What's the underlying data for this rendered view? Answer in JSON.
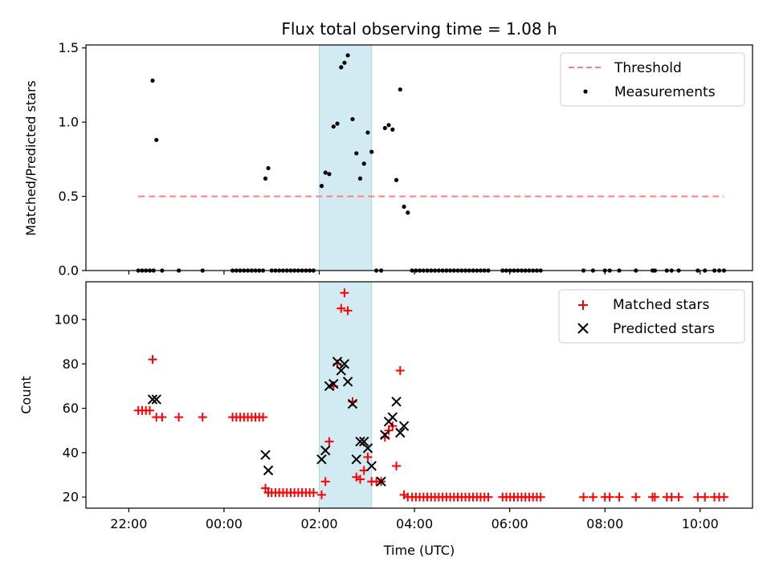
{
  "chart_data": [
    {
      "type": "scatter",
      "title": "Flux total observing time = 1.08 h",
      "ylabel": "Matched/Predicted stars",
      "ylim": [
        0,
        1.52
      ],
      "yticks": [
        0.0,
        0.5,
        1.0,
        1.5
      ],
      "ytick_labels": [
        "0.0",
        "0.5",
        "1.0",
        "1.5"
      ],
      "x_unit": "hours from 00:00 UTC (negative = previous day)",
      "xlim": [
        -2.9,
        11.1
      ],
      "highlight_span": {
        "x": [
          2.0,
          3.1
        ],
        "color": "#add8e6"
      },
      "legend_placement": "top-right",
      "series": [
        {
          "name": "Threshold",
          "kind": "dashed-line",
          "color": "#ff7f7f",
          "x": [
            -1.8,
            10.5
          ],
          "y": [
            0.5,
            0.5
          ]
        },
        {
          "name": "Measurements",
          "kind": "points",
          "color": "#000000",
          "points": [
            [
              -1.8,
              0
            ],
            [
              -1.72,
              0
            ],
            [
              -1.64,
              0
            ],
            [
              -1.56,
              0
            ],
            [
              -1.48,
              0
            ],
            [
              -1.5,
              1.28
            ],
            [
              -1.42,
              0.88
            ],
            [
              -1.3,
              0
            ],
            [
              -0.95,
              0
            ],
            [
              -0.45,
              0
            ],
            [
              0.18,
              0
            ],
            [
              0.26,
              0
            ],
            [
              0.34,
              0
            ],
            [
              0.42,
              0
            ],
            [
              0.5,
              0
            ],
            [
              0.58,
              0
            ],
            [
              0.66,
              0
            ],
            [
              0.74,
              0
            ],
            [
              0.82,
              0
            ],
            [
              0.87,
              0.62
            ],
            [
              0.93,
              0.69
            ],
            [
              1.0,
              0
            ],
            [
              1.08,
              0
            ],
            [
              1.16,
              0
            ],
            [
              1.24,
              0
            ],
            [
              1.32,
              0
            ],
            [
              1.4,
              0
            ],
            [
              1.48,
              0
            ],
            [
              1.56,
              0
            ],
            [
              1.64,
              0
            ],
            [
              1.72,
              0
            ],
            [
              1.8,
              0
            ],
            [
              1.88,
              0
            ],
            [
              2.05,
              0.57
            ],
            [
              2.13,
              0.66
            ],
            [
              2.21,
              0.65
            ],
            [
              2.3,
              0.97
            ],
            [
              2.38,
              0.99
            ],
            [
              2.46,
              1.37
            ],
            [
              2.53,
              1.4
            ],
            [
              2.6,
              1.45
            ],
            [
              2.7,
              1.02
            ],
            [
              2.78,
              0.79
            ],
            [
              2.86,
              0.62
            ],
            [
              2.94,
              0.72
            ],
            [
              3.02,
              0.93
            ],
            [
              3.1,
              0.8
            ],
            [
              3.2,
              0
            ],
            [
              3.3,
              0
            ],
            [
              3.38,
              0.96
            ],
            [
              3.46,
              0.98
            ],
            [
              3.54,
              0.95
            ],
            [
              3.62,
              0.61
            ],
            [
              3.7,
              1.22
            ],
            [
              3.78,
              0.43
            ],
            [
              3.86,
              0.39
            ],
            [
              3.95,
              0
            ],
            [
              4.03,
              0
            ],
            [
              4.11,
              0
            ],
            [
              4.19,
              0
            ],
            [
              4.27,
              0
            ],
            [
              4.35,
              0
            ],
            [
              4.43,
              0
            ],
            [
              4.51,
              0
            ],
            [
              4.59,
              0
            ],
            [
              4.67,
              0
            ],
            [
              4.75,
              0
            ],
            [
              4.83,
              0
            ],
            [
              4.91,
              0
            ],
            [
              4.99,
              0
            ],
            [
              5.07,
              0
            ],
            [
              5.15,
              0
            ],
            [
              5.23,
              0
            ],
            [
              5.31,
              0
            ],
            [
              5.39,
              0
            ],
            [
              5.47,
              0
            ],
            [
              5.55,
              0
            ],
            [
              5.85,
              0
            ],
            [
              5.93,
              0
            ],
            [
              6.01,
              0
            ],
            [
              6.09,
              0
            ],
            [
              6.17,
              0
            ],
            [
              6.25,
              0
            ],
            [
              6.33,
              0
            ],
            [
              6.41,
              0
            ],
            [
              6.49,
              0
            ],
            [
              6.57,
              0
            ],
            [
              6.65,
              0
            ],
            [
              7.55,
              0
            ],
            [
              7.75,
              0
            ],
            [
              8.0,
              0
            ],
            [
              8.1,
              0
            ],
            [
              8.3,
              0
            ],
            [
              8.65,
              0
            ],
            [
              9.0,
              0
            ],
            [
              9.05,
              0
            ],
            [
              9.3,
              0
            ],
            [
              9.4,
              0
            ],
            [
              9.55,
              0
            ],
            [
              9.95,
              0
            ],
            [
              10.1,
              0
            ],
            [
              10.3,
              0
            ],
            [
              10.4,
              0
            ],
            [
              10.5,
              0
            ]
          ]
        }
      ]
    },
    {
      "type": "scatter",
      "xlabel": "Time (UTC)",
      "ylabel": "Count",
      "ylim": [
        15,
        117
      ],
      "yticks": [
        20,
        40,
        60,
        80,
        100
      ],
      "ytick_labels": [
        "20",
        "40",
        "60",
        "80",
        "100"
      ],
      "xticks": [
        -2,
        0,
        2,
        4,
        6,
        8,
        10
      ],
      "xtick_labels": [
        "22:00",
        "00:00",
        "02:00",
        "04:00",
        "06:00",
        "08:00",
        "10:00"
      ],
      "xlim": [
        -2.9,
        11.1
      ],
      "highlight_span": {
        "x": [
          2.0,
          3.1
        ],
        "color": "#add8e6"
      },
      "legend_placement": "top-right",
      "series": [
        {
          "name": "Matched stars",
          "kind": "plus",
          "color": "#ff0000",
          "points": [
            [
              -1.8,
              59
            ],
            [
              -1.72,
              59
            ],
            [
              -1.64,
              59
            ],
            [
              -1.56,
              59
            ],
            [
              -1.5,
              82
            ],
            [
              -1.42,
              56
            ],
            [
              -1.3,
              56
            ],
            [
              -0.95,
              56
            ],
            [
              -0.45,
              56
            ],
            [
              0.18,
              56
            ],
            [
              0.26,
              56
            ],
            [
              0.34,
              56
            ],
            [
              0.42,
              56
            ],
            [
              0.5,
              56
            ],
            [
              0.58,
              56
            ],
            [
              0.66,
              56
            ],
            [
              0.74,
              56
            ],
            [
              0.82,
              56
            ],
            [
              0.87,
              24
            ],
            [
              0.93,
              22
            ],
            [
              1.0,
              22
            ],
            [
              1.08,
              22
            ],
            [
              1.16,
              22
            ],
            [
              1.24,
              22
            ],
            [
              1.32,
              22
            ],
            [
              1.4,
              22
            ],
            [
              1.48,
              22
            ],
            [
              1.56,
              22
            ],
            [
              1.64,
              22
            ],
            [
              1.72,
              22
            ],
            [
              1.8,
              22
            ],
            [
              1.88,
              22
            ],
            [
              2.05,
              21
            ],
            [
              2.13,
              27
            ],
            [
              2.21,
              45
            ],
            [
              2.3,
              70
            ],
            [
              2.38,
              80
            ],
            [
              2.46,
              105
            ],
            [
              2.53,
              112
            ],
            [
              2.6,
              104
            ],
            [
              2.7,
              63
            ],
            [
              2.78,
              29
            ],
            [
              2.86,
              28
            ],
            [
              2.94,
              32
            ],
            [
              3.02,
              38
            ],
            [
              3.1,
              27
            ],
            [
              3.2,
              27
            ],
            [
              3.3,
              27
            ],
            [
              3.38,
              47
            ],
            [
              3.46,
              50
            ],
            [
              3.54,
              52
            ],
            [
              3.62,
              34
            ],
            [
              3.7,
              77
            ],
            [
              3.78,
              21
            ],
            [
              3.86,
              20
            ],
            [
              3.95,
              20
            ],
            [
              4.03,
              20
            ],
            [
              4.11,
              20
            ],
            [
              4.19,
              20
            ],
            [
              4.27,
              20
            ],
            [
              4.35,
              20
            ],
            [
              4.43,
              20
            ],
            [
              4.51,
              20
            ],
            [
              4.59,
              20
            ],
            [
              4.67,
              20
            ],
            [
              4.75,
              20
            ],
            [
              4.83,
              20
            ],
            [
              4.91,
              20
            ],
            [
              4.99,
              20
            ],
            [
              5.07,
              20
            ],
            [
              5.15,
              20
            ],
            [
              5.23,
              20
            ],
            [
              5.31,
              20
            ],
            [
              5.39,
              20
            ],
            [
              5.47,
              20
            ],
            [
              5.55,
              20
            ],
            [
              5.85,
              20
            ],
            [
              5.93,
              20
            ],
            [
              6.01,
              20
            ],
            [
              6.09,
              20
            ],
            [
              6.17,
              20
            ],
            [
              6.25,
              20
            ],
            [
              6.33,
              20
            ],
            [
              6.41,
              20
            ],
            [
              6.49,
              20
            ],
            [
              6.57,
              20
            ],
            [
              6.65,
              20
            ],
            [
              7.55,
              20
            ],
            [
              7.75,
              20
            ],
            [
              8.0,
              20
            ],
            [
              8.1,
              20
            ],
            [
              8.3,
              20
            ],
            [
              8.65,
              20
            ],
            [
              9.0,
              20
            ],
            [
              9.05,
              20
            ],
            [
              9.3,
              20
            ],
            [
              9.4,
              20
            ],
            [
              9.55,
              20
            ],
            [
              9.95,
              20
            ],
            [
              10.1,
              20
            ],
            [
              10.3,
              20
            ],
            [
              10.4,
              20
            ],
            [
              10.5,
              20
            ]
          ]
        },
        {
          "name": "Predicted stars",
          "kind": "cross",
          "color": "#000000",
          "points": [
            [
              -1.5,
              64
            ],
            [
              -1.42,
              64
            ],
            [
              0.87,
              39
            ],
            [
              0.93,
              32
            ],
            [
              2.05,
              37
            ],
            [
              2.13,
              41
            ],
            [
              2.21,
              70
            ],
            [
              2.3,
              71
            ],
            [
              2.38,
              81
            ],
            [
              2.46,
              77
            ],
            [
              2.53,
              80
            ],
            [
              2.6,
              72
            ],
            [
              2.7,
              62
            ],
            [
              2.78,
              37
            ],
            [
              2.86,
              45
            ],
            [
              2.94,
              45
            ],
            [
              3.02,
              42
            ],
            [
              3.1,
              34
            ],
            [
              3.3,
              27
            ],
            [
              3.38,
              48
            ],
            [
              3.46,
              54
            ],
            [
              3.54,
              56
            ],
            [
              3.62,
              63
            ],
            [
              3.7,
              49
            ],
            [
              3.78,
              52
            ]
          ]
        }
      ]
    }
  ]
}
